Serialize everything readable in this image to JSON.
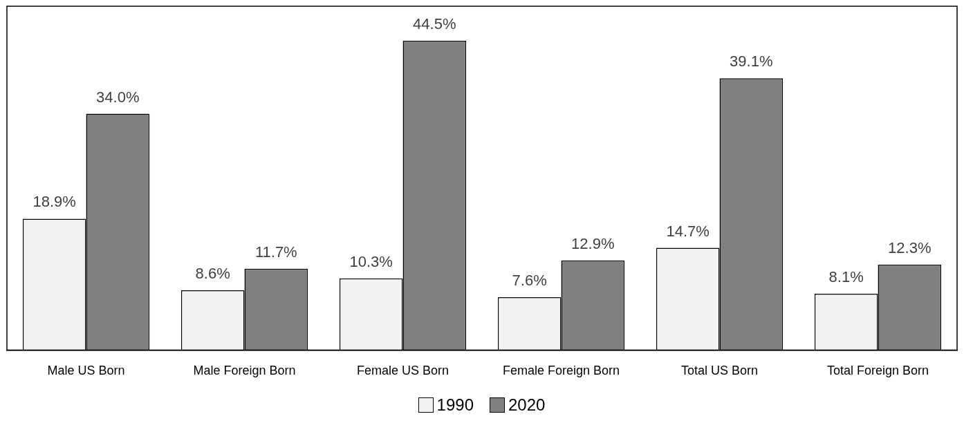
{
  "chart_data": {
    "type": "bar",
    "categories": [
      "Male US Born",
      "Male Foreign Born",
      "Female US Born",
      "Female Foreign Born",
      "Total US Born",
      "Total Foreign Born"
    ],
    "series": [
      {
        "name": "1990",
        "color": "#f2f2f2",
        "values": [
          18.9,
          8.6,
          10.3,
          7.6,
          14.7,
          8.1
        ],
        "value_labels": [
          "18.9%",
          "8.6%",
          "10.3%",
          "7.6%",
          "14.7%",
          "8.1%"
        ]
      },
      {
        "name": "2020",
        "color": "#808080",
        "values": [
          34.0,
          11.7,
          44.5,
          12.9,
          39.1,
          12.3
        ],
        "value_labels": [
          "34.0%",
          "11.7%",
          "44.5%",
          "12.9%",
          "39.1%",
          "12.3%"
        ]
      }
    ],
    "legend": "bottom",
    "grid": false
  }
}
